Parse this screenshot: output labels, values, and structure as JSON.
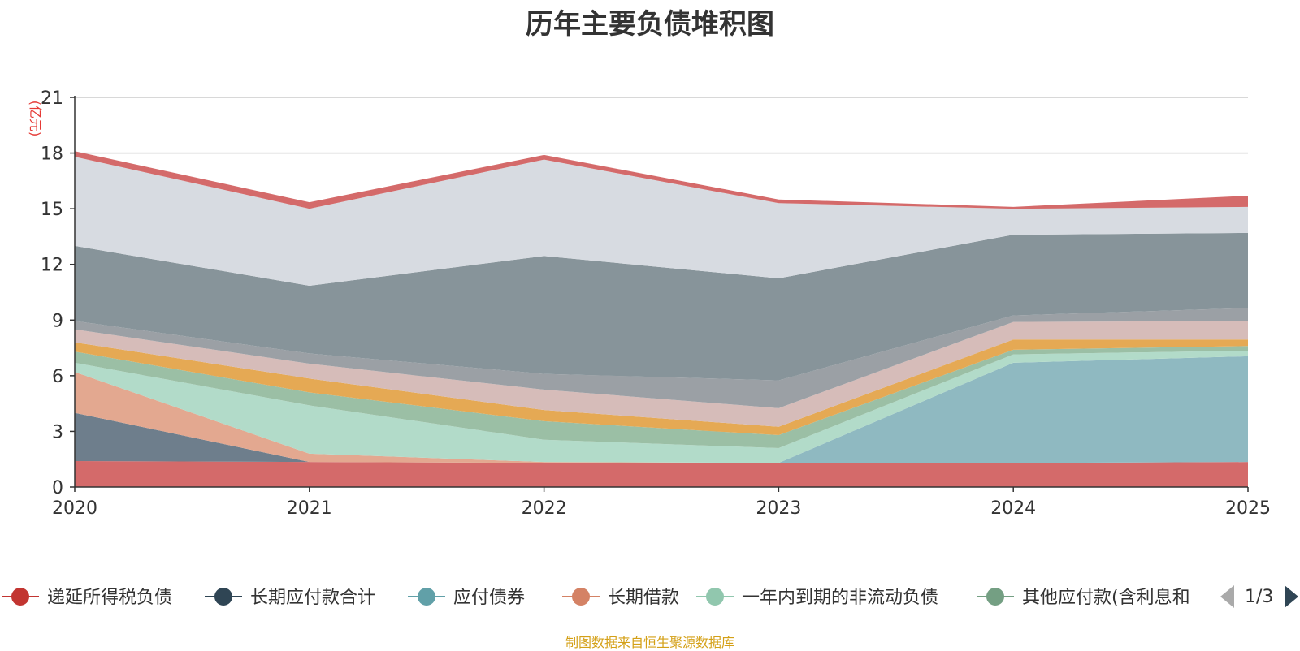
{
  "title": "历年主要负债堆积图",
  "footer": "制图数据来自恒生聚源数据库",
  "legend": {
    "items": [
      {
        "name": "递延所得税负债",
        "color": "#c23531"
      },
      {
        "name": "长期应付款合计",
        "color": "#2f4554"
      },
      {
        "name": "应付债券",
        "color": "#61a0a8"
      },
      {
        "name": "长期借款",
        "color": "#d48265"
      },
      {
        "name": "一年内到期的非流动负债",
        "color": "#91c7ae"
      },
      {
        "name": "其他应付款(含利息和",
        "color": "#749f83"
      }
    ],
    "page": "1/3",
    "prev_color": "#aaaaaa",
    "next_color": "#2f4554"
  },
  "chart_data": {
    "type": "area",
    "stacked": true,
    "title": "历年主要负债堆积图",
    "ylabel": "(亿元)",
    "ylim": [
      0,
      21
    ],
    "yticks": [
      0,
      3,
      6,
      9,
      12,
      15,
      18,
      21
    ],
    "categories": [
      "2020",
      "2021",
      "2022",
      "2023",
      "2024",
      "2025"
    ],
    "series": [
      {
        "name": "series-a",
        "color": "#d46a6a",
        "values": [
          1.4,
          1.35,
          1.3,
          1.3,
          1.3,
          1.35
        ]
      },
      {
        "name": "series-b",
        "color": "#6e7e8c",
        "values": [
          2.6,
          0.0,
          0.0,
          0.0,
          0.0,
          0.0
        ]
      },
      {
        "name": "series-c",
        "color": "#8fb9c1",
        "values": [
          0.0,
          0.0,
          0.0,
          0.0,
          5.4,
          5.7
        ]
      },
      {
        "name": "series-d",
        "color": "#e3a890",
        "values": [
          2.2,
          0.45,
          0.05,
          0.0,
          0.0,
          0.0
        ]
      },
      {
        "name": "series-e",
        "color": "#b2dbc9",
        "values": [
          0.5,
          2.6,
          1.2,
          0.8,
          0.45,
          0.3
        ]
      },
      {
        "name": "series-f",
        "color": "#9bbfa5",
        "values": [
          0.6,
          0.7,
          1.0,
          0.7,
          0.25,
          0.25
        ]
      },
      {
        "name": "series-g",
        "color": "#e5a954",
        "values": [
          0.5,
          0.75,
          0.6,
          0.45,
          0.55,
          0.35
        ]
      },
      {
        "name": "series-h",
        "color": "#d6bcb9",
        "values": [
          0.7,
          0.8,
          1.1,
          1.0,
          0.95,
          1.0
        ]
      },
      {
        "name": "series-i",
        "color": "#9ba0a5",
        "values": [
          0.45,
          0.55,
          0.85,
          1.5,
          0.35,
          0.7
        ]
      },
      {
        "name": "series-j",
        "color": "#87949a",
        "values": [
          4.05,
          3.65,
          6.35,
          5.5,
          4.35,
          4.05
        ]
      },
      {
        "name": "series-k",
        "color": "#d7dbe1",
        "values": [
          4.8,
          4.15,
          5.2,
          4.05,
          1.4,
          1.4
        ]
      },
      {
        "name": "series-l",
        "color": "#d46a6a",
        "values": [
          0.3,
          0.35,
          0.25,
          0.2,
          0.1,
          0.6
        ]
      }
    ]
  }
}
